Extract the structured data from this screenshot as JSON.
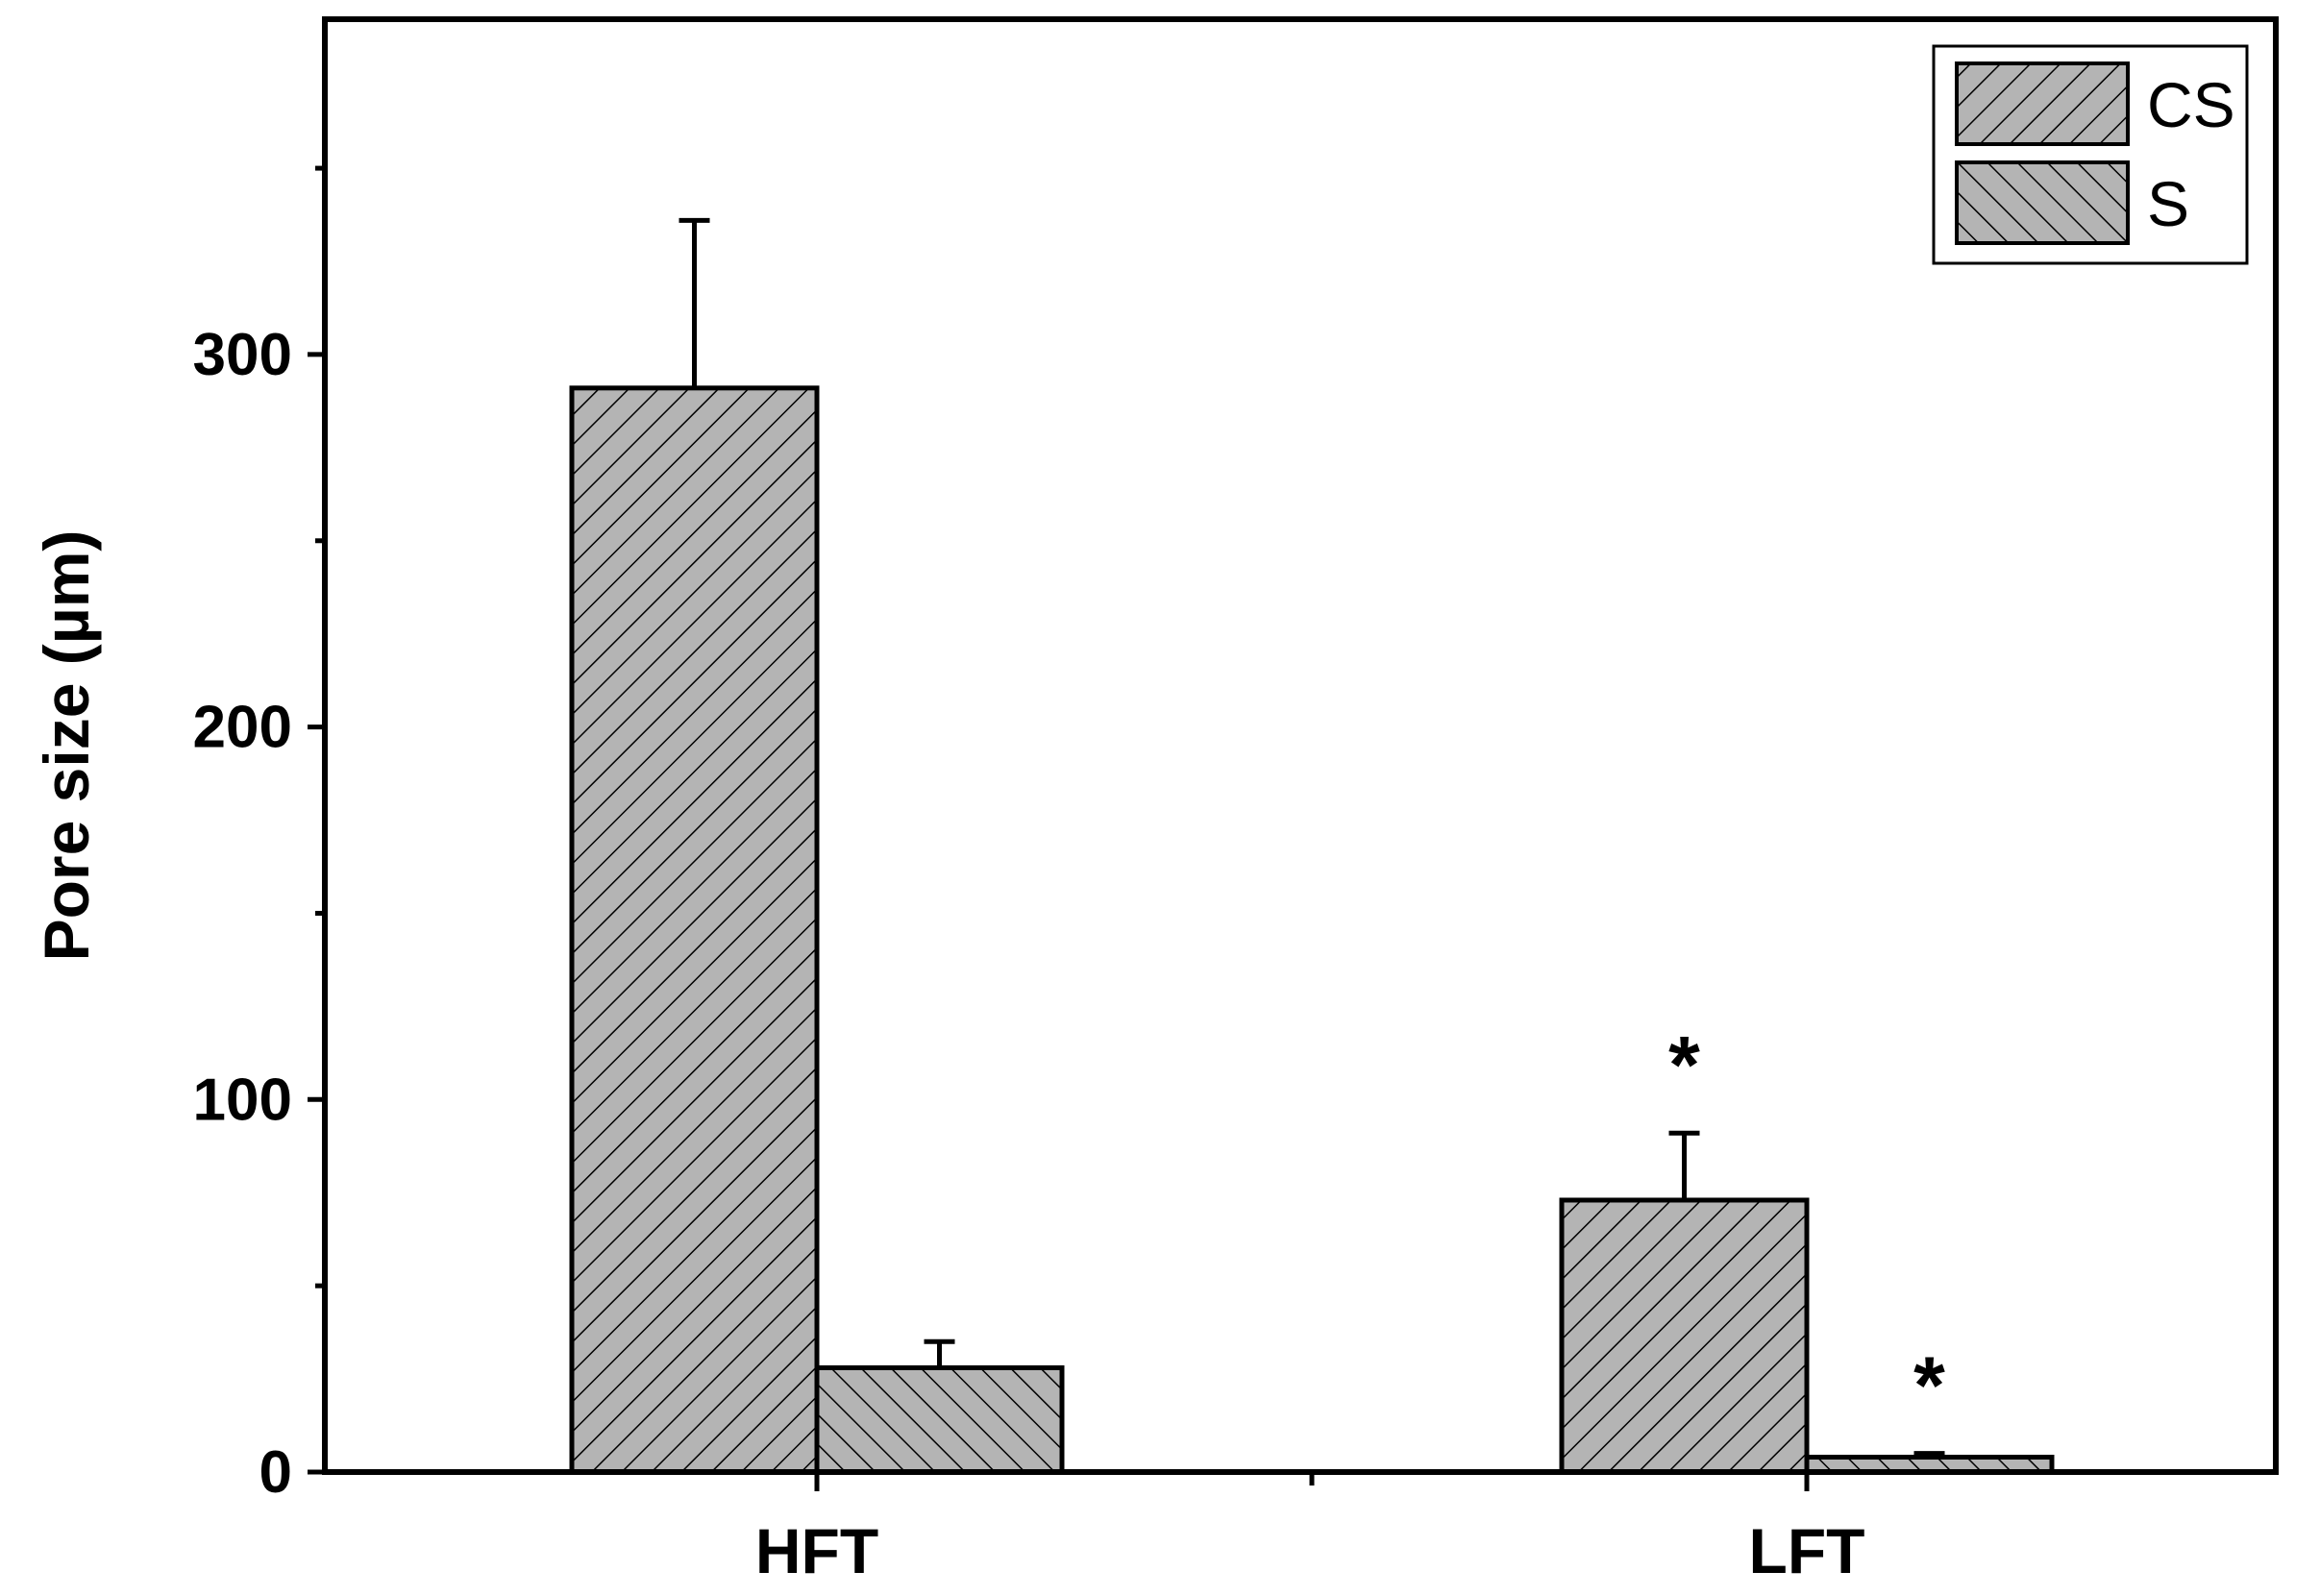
{
  "chart_data": {
    "type": "bar",
    "categories": [
      "HFT",
      "LFT"
    ],
    "series": [
      {
        "name": "CS",
        "values": [
          291,
          73
        ],
        "errors": [
          45,
          18
        ],
        "pattern": "forward-hatch",
        "significance": [
          "",
          "*"
        ]
      },
      {
        "name": "S",
        "values": [
          28,
          4
        ],
        "errors": [
          7,
          1
        ],
        "pattern": "back-hatch",
        "significance": [
          "",
          "*"
        ]
      }
    ],
    "title": "",
    "xlabel": "",
    "ylabel": "Pore size (µm)",
    "ylim": [
      0,
      390
    ],
    "yticks": [
      0,
      100,
      200,
      300
    ],
    "yminor_ticks": [
      50,
      150,
      250,
      350
    ],
    "grid": false,
    "legend_position": "top-right",
    "colors": {
      "bar_fill": "#b4b4b4",
      "hatch": "#000000",
      "axis": "#000000",
      "background": "#ffffff"
    }
  }
}
